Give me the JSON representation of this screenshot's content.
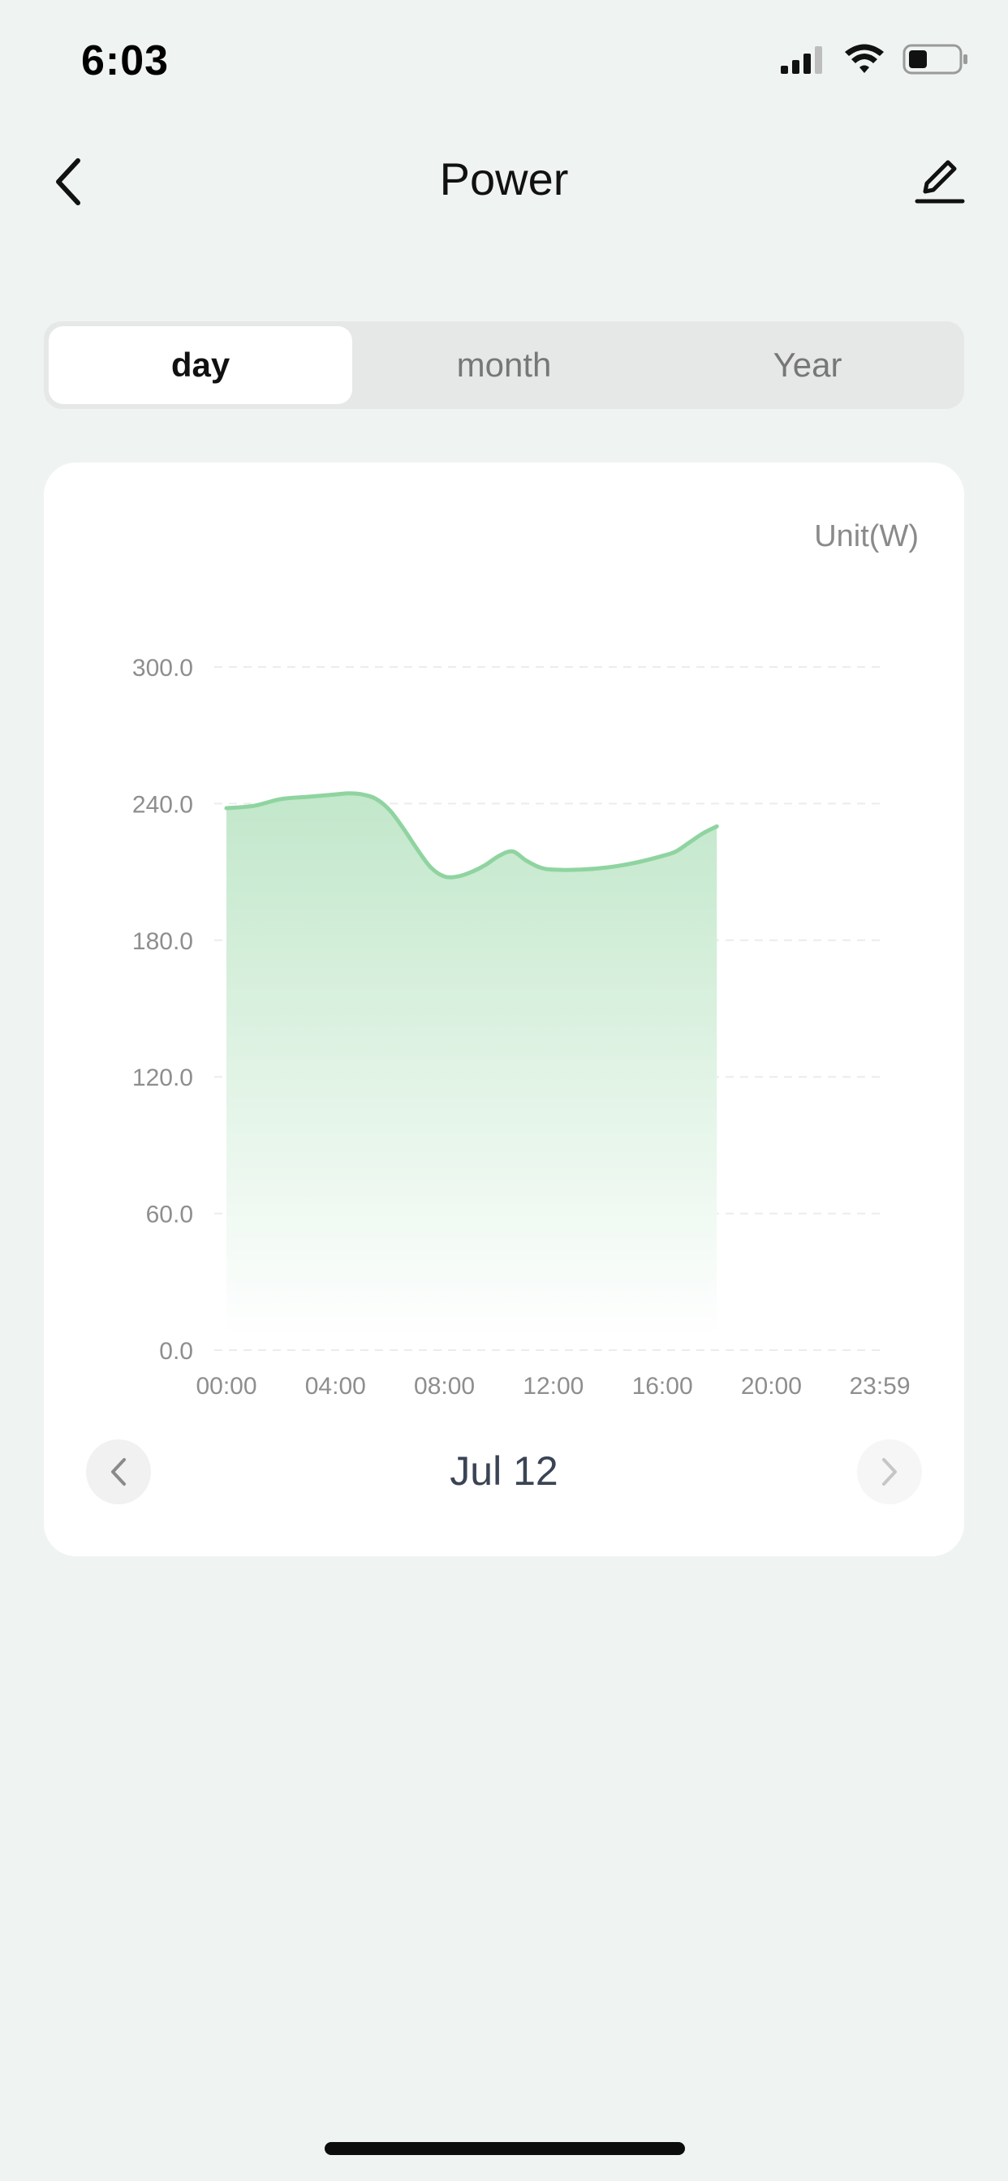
{
  "status_bar": {
    "time": "6:03",
    "icons": [
      "cellular-signal-icon",
      "wifi-icon",
      "battery-icon"
    ]
  },
  "nav": {
    "title": "Power",
    "back_icon": "chevron-left-icon",
    "edit_icon": "pencil-icon"
  },
  "tabs": [
    {
      "label": "day",
      "active": true
    },
    {
      "label": "month",
      "active": false
    },
    {
      "label": "Year",
      "active": false
    }
  ],
  "chart_card": {
    "unit_label": "Unit(W)",
    "date_label": "Jul 12",
    "prev_icon": "chevron-left-icon",
    "next_icon": "chevron-right-icon"
  },
  "chart_data": {
    "type": "area",
    "ylim": [
      0,
      300
    ],
    "y_ticks": [
      "0.0",
      "60.0",
      "120.0",
      "180.0",
      "240.0",
      "300.0"
    ],
    "x_tick_labels": [
      "00:00",
      "04:00",
      "08:00",
      "12:00",
      "16:00",
      "20:00",
      "23:59"
    ],
    "x_ticks_hours": [
      0,
      4,
      8,
      12,
      16,
      20,
      23.98
    ],
    "xlim_hours": [
      0,
      23.98
    ],
    "grid": true,
    "colors": {
      "line": "#8fd4a0",
      "fill_top": "#bfe6c8",
      "fill_bottom": "#ffffff"
    },
    "x_hours": [
      0,
      1,
      2,
      3,
      4,
      4.5,
      5,
      5.5,
      6,
      6.5,
      7,
      7.5,
      8,
      8.5,
      9,
      9.5,
      10,
      10.5,
      11,
      11.5,
      12,
      13,
      14,
      15,
      16,
      16.5,
      17,
      17.5,
      18
    ],
    "values": [
      238,
      239,
      242,
      243,
      244,
      244.5,
      244,
      242,
      237,
      229,
      220,
      212,
      208,
      208,
      210,
      213,
      217,
      219,
      215,
      212,
      211,
      211,
      212,
      214,
      217,
      219,
      223,
      227,
      230
    ]
  },
  "home_indicator": true
}
